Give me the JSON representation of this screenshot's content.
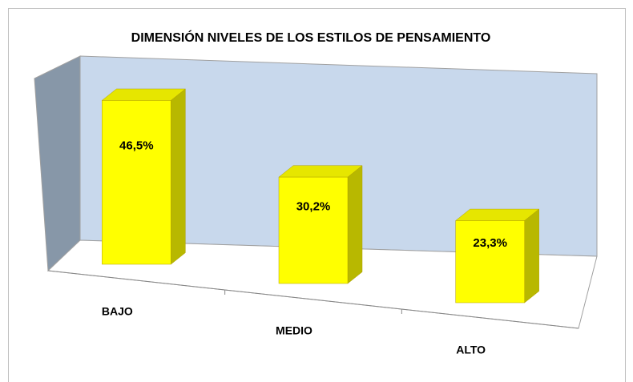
{
  "chart_data": {
    "type": "bar3d",
    "title": "DIMENSIÓN NIVELES DE LOS ESTILOS DE PENSAMIENTO",
    "categories": [
      "BAJO",
      "MEDIO",
      "ALTO"
    ],
    "values": [
      46.5,
      30.2,
      23.3
    ],
    "value_labels": [
      "46,5%",
      "30,2%",
      "23,3%"
    ],
    "color": "#ffff00"
  }
}
